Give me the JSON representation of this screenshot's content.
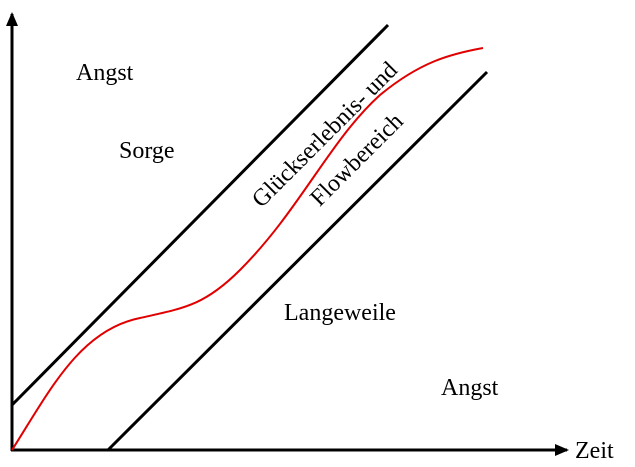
{
  "regions": [
    {
      "label": "Angst"
    },
    {
      "label": "Sorge"
    },
    {
      "label": "Langeweile"
    },
    {
      "label": "Angst"
    }
  ],
  "channel": {
    "line1": "Glückserlebnis- und",
    "line2": "Flowbereich"
  },
  "axes": {
    "x_label": "Zeit"
  }
}
